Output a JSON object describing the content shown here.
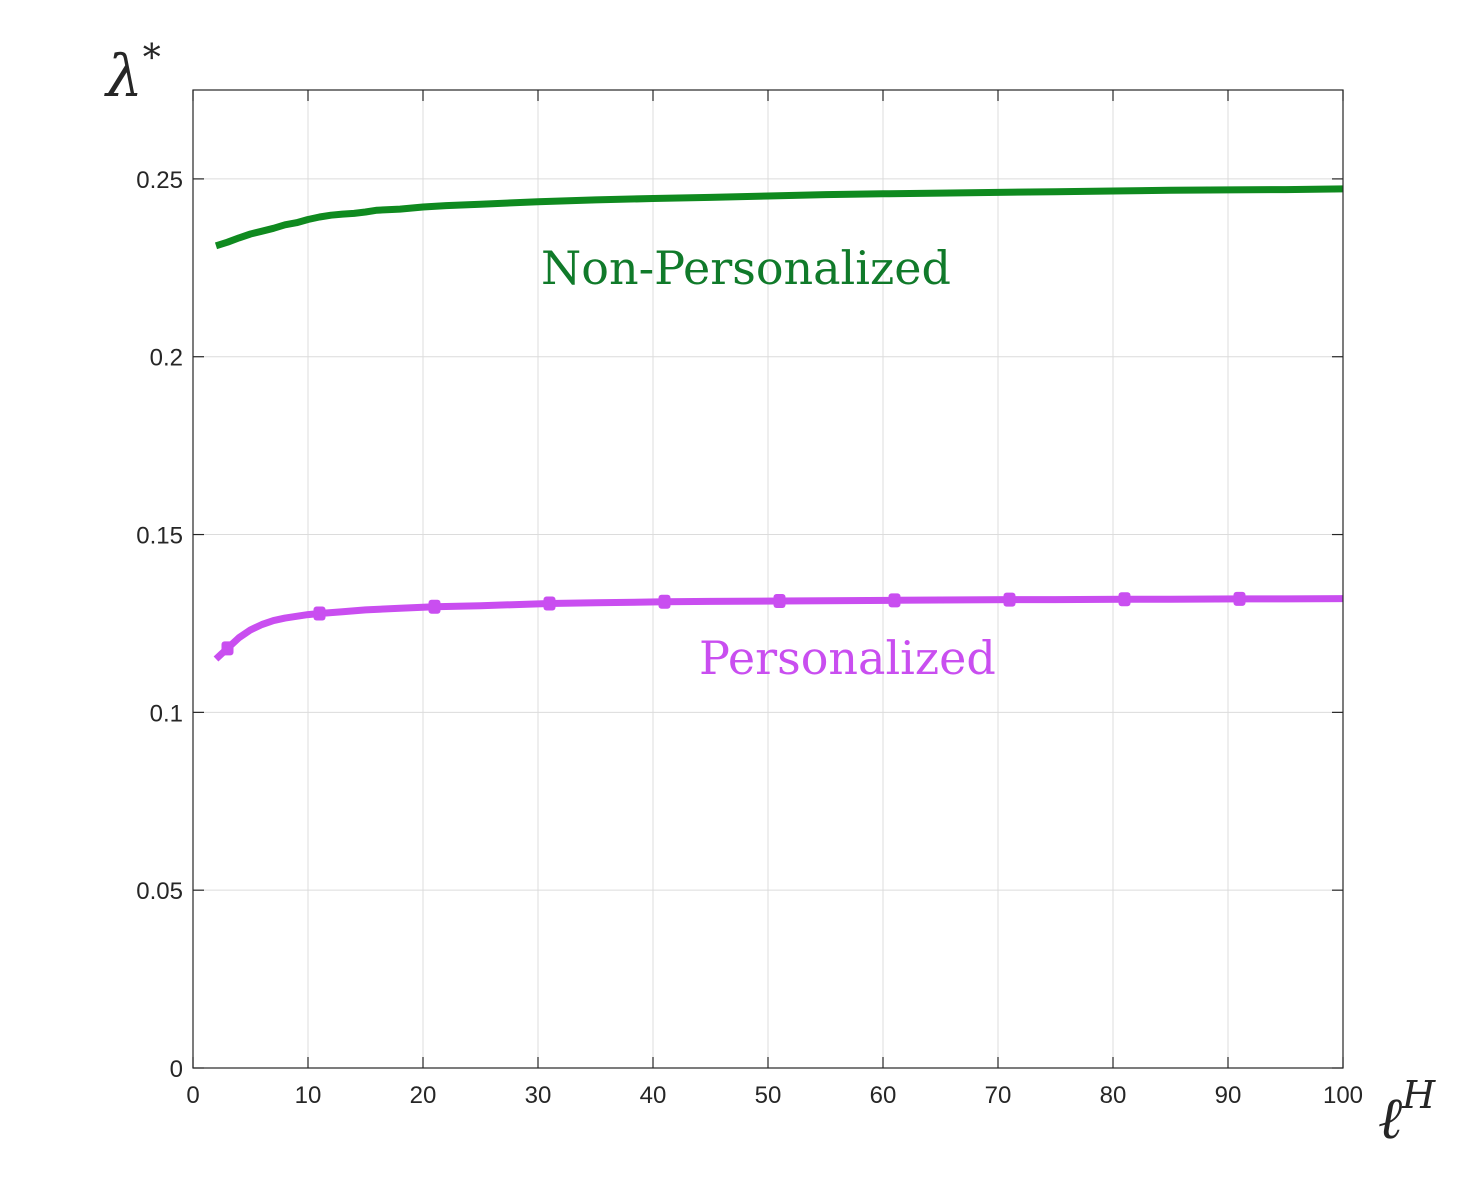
{
  "chart_data": {
    "type": "line",
    "title": "",
    "xlabel": "ℓ",
    "xlabel_superscript": "H",
    "ylabel": "λ",
    "ylabel_superscript": "*",
    "xlim": [
      0,
      100
    ],
    "ylim": [
      0,
      0.275
    ],
    "x_ticks": [
      0,
      10,
      20,
      30,
      40,
      50,
      60,
      70,
      80,
      90,
      100
    ],
    "x_tick_labels": [
      "0",
      "10",
      "20",
      "30",
      "40",
      "50",
      "60",
      "70",
      "80",
      "90",
      "100"
    ],
    "y_ticks": [
      0,
      0.05,
      0.1,
      0.15,
      0.2,
      0.25
    ],
    "y_tick_labels": [
      "0",
      "0.05",
      "0.1",
      "0.15",
      "0.2",
      "0.25"
    ],
    "grid": true,
    "legend": "none",
    "series": [
      {
        "name": "Non-Personalized",
        "color": "#0f8a1f",
        "label_color": "#107a2a",
        "markers": false,
        "x": [
          2,
          3,
          4,
          5,
          6,
          7,
          8,
          9,
          10,
          11,
          12,
          13,
          14,
          15,
          16,
          18,
          20,
          22,
          25,
          30,
          35,
          40,
          45,
          50,
          55,
          60,
          65,
          70,
          75,
          80,
          85,
          90,
          95,
          100
        ],
        "y": [
          0.2312,
          0.2322,
          0.2334,
          0.2345,
          0.2353,
          0.2361,
          0.2371,
          0.2377,
          0.2386,
          0.2393,
          0.2398,
          0.2401,
          0.2403,
          0.2407,
          0.2412,
          0.2415,
          0.2421,
          0.2425,
          0.2429,
          0.2436,
          0.2441,
          0.2445,
          0.2448,
          0.2452,
          0.2456,
          0.2458,
          0.246,
          0.2462,
          0.2464,
          0.2466,
          0.2468,
          0.2469,
          0.247,
          0.2472
        ]
      },
      {
        "name": "Personalized",
        "color": "#c94ef0",
        "label_color": "#c94ef0",
        "markers": true,
        "x": [
          2,
          3,
          4,
          5,
          6,
          7,
          8,
          9,
          10,
          11,
          13,
          15,
          18,
          21,
          25,
          31,
          35,
          41,
          45,
          51,
          55,
          61,
          65,
          71,
          75,
          81,
          85,
          91,
          95,
          100
        ],
        "y": [
          0.115,
          0.118,
          0.121,
          0.1232,
          0.1247,
          0.1258,
          0.1265,
          0.127,
          0.1275,
          0.1278,
          0.1283,
          0.1288,
          0.1293,
          0.1297,
          0.13,
          0.1306,
          0.1308,
          0.1311,
          0.1312,
          0.1313,
          0.1314,
          0.1315,
          0.1316,
          0.1317,
          0.1317,
          0.1318,
          0.1318,
          0.1319,
          0.1319,
          0.132
        ],
        "marker_x": [
          3,
          11,
          21,
          31,
          41,
          51,
          61,
          71,
          81,
          91
        ]
      }
    ]
  }
}
